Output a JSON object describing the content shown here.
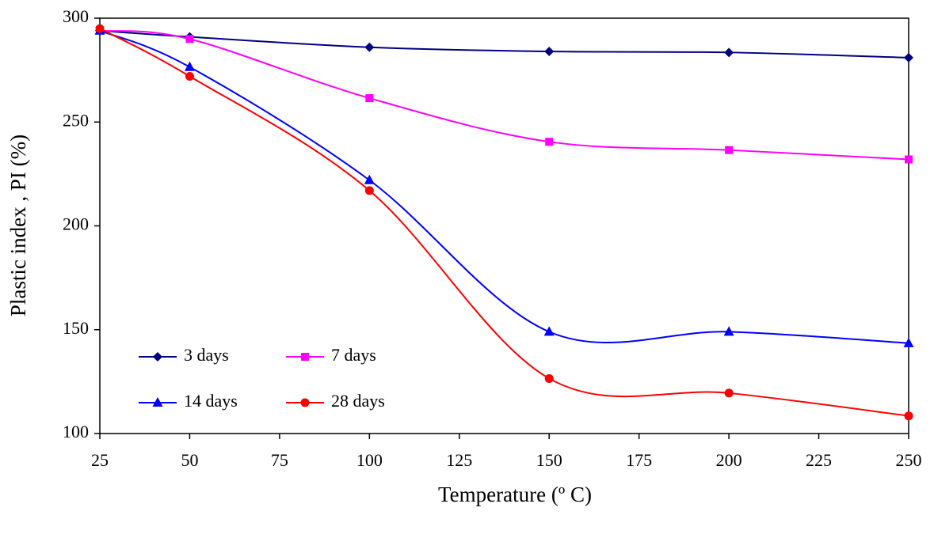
{
  "chart_data": {
    "type": "line",
    "x_label": "Temperature (º C)",
    "y_label": "Plastic index , PI (%)",
    "x": [
      25,
      50,
      100,
      150,
      200,
      250
    ],
    "series": [
      {
        "name": "3 days",
        "color": "#000080",
        "marker": "diamond",
        "values": [
          294,
          291,
          286,
          284,
          283.5,
          281
        ]
      },
      {
        "name": "7 days",
        "color": "#ff00ff",
        "marker": "square",
        "values": [
          294,
          290,
          261.5,
          240.5,
          236.5,
          232
        ]
      },
      {
        "name": "14 days",
        "color": "#0000ff",
        "marker": "triangle",
        "values": [
          294,
          276.5,
          222,
          149,
          149,
          143.5
        ]
      },
      {
        "name": "28 days",
        "color": "#ff0000",
        "marker": "circle",
        "values": [
          295,
          272,
          217,
          126.5,
          119.5,
          108.5
        ]
      }
    ],
    "xlim": [
      25,
      250
    ],
    "xticks": [
      25,
      50,
      75,
      100,
      125,
      150,
      175,
      200,
      225,
      250
    ],
    "ylim": [
      100,
      300
    ],
    "yticks": [
      100,
      150,
      200,
      250,
      300
    ],
    "grid": false,
    "smooth": true
  }
}
